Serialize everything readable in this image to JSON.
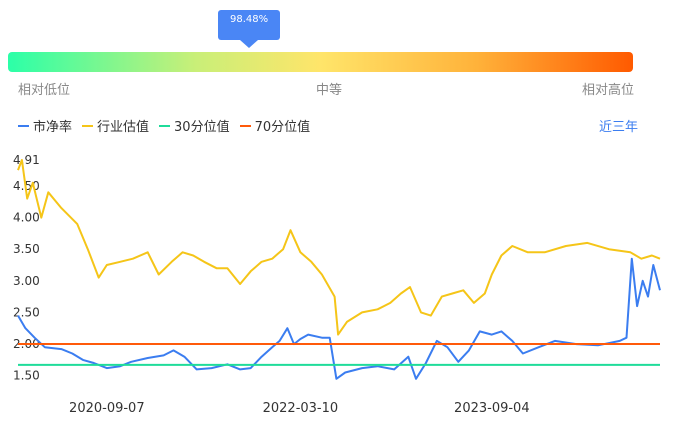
{
  "gauge": {
    "value_label": "98.48%",
    "percentile": 0.3857,
    "low_label": "相对低位",
    "mid_label": "中等",
    "high_label": "相对高位"
  },
  "legend": [
    {
      "label": "市净率",
      "color": "#3b7df0"
    },
    {
      "label": "行业估值",
      "color": "#f5c518"
    },
    {
      "label": "30分位值",
      "color": "#1fdc9a"
    },
    {
      "label": "70分位值",
      "color": "#ff5a0a"
    }
  ],
  "range_label": "近三年",
  "chart_data": {
    "type": "line",
    "title": "",
    "xlabel": "",
    "ylabel": "",
    "ylim": [
      1.4,
      4.91
    ],
    "yticks": [
      "4.91",
      "4.50",
      "4.00",
      "3.50",
      "3.00",
      "2.50",
      "2.00",
      "1.50"
    ],
    "xticks": [
      "2020-09-07",
      "2022-03-10",
      "2023-09-04"
    ],
    "x_range": [
      "2019-12-30",
      "2024-12-24"
    ],
    "series": [
      {
        "name": "市净率",
        "color": "#3b7df0",
        "points": [
          [
            "2019-12-30",
            2.45
          ],
          [
            "2020-01-20",
            2.25
          ],
          [
            "2020-02-15",
            2.1
          ],
          [
            "2020-03-15",
            1.95
          ],
          [
            "2020-05-01",
            1.92
          ],
          [
            "2020-06-01",
            1.85
          ],
          [
            "2020-07-01",
            1.75
          ],
          [
            "2020-08-01",
            1.7
          ],
          [
            "2020-09-07",
            1.62
          ],
          [
            "2020-10-15",
            1.65
          ],
          [
            "2020-11-15",
            1.72
          ],
          [
            "2021-01-01",
            1.78
          ],
          [
            "2021-02-15",
            1.82
          ],
          [
            "2021-03-15",
            1.9
          ],
          [
            "2021-04-15",
            1.8
          ],
          [
            "2021-05-20",
            1.6
          ],
          [
            "2021-07-01",
            1.62
          ],
          [
            "2021-08-15",
            1.68
          ],
          [
            "2021-09-20",
            1.6
          ],
          [
            "2021-10-20",
            1.62
          ],
          [
            "2021-11-20",
            1.8
          ],
          [
            "2021-12-20",
            1.95
          ],
          [
            "2022-01-10",
            2.05
          ],
          [
            "2022-02-01",
            2.25
          ],
          [
            "2022-02-20",
            2.0
          ],
          [
            "2022-03-10",
            2.08
          ],
          [
            "2022-04-01",
            2.15
          ],
          [
            "2022-05-10",
            2.1
          ],
          [
            "2022-06-01",
            2.1
          ],
          [
            "2022-06-20",
            1.45
          ],
          [
            "2022-07-15",
            1.55
          ],
          [
            "2022-09-01",
            1.62
          ],
          [
            "2022-10-15",
            1.65
          ],
          [
            "2022-12-01",
            1.6
          ],
          [
            "2023-01-10",
            1.8
          ],
          [
            "2023-02-01",
            1.45
          ],
          [
            "2023-03-01",
            1.7
          ],
          [
            "2023-04-01",
            2.05
          ],
          [
            "2023-05-01",
            1.95
          ],
          [
            "2023-06-01",
            1.72
          ],
          [
            "2023-07-01",
            1.9
          ],
          [
            "2023-08-01",
            2.2
          ],
          [
            "2023-09-04",
            2.15
          ],
          [
            "2023-10-01",
            2.2
          ],
          [
            "2023-11-01",
            2.05
          ],
          [
            "2023-12-01",
            1.85
          ],
          [
            "2024-01-15",
            1.95
          ],
          [
            "2024-03-01",
            2.05
          ],
          [
            "2024-05-01",
            2.0
          ],
          [
            "2024-07-01",
            1.98
          ],
          [
            "2024-09-01",
            2.05
          ],
          [
            "2024-09-20",
            2.1
          ],
          [
            "2024-10-05",
            3.35
          ],
          [
            "2024-10-20",
            2.6
          ],
          [
            "2024-11-05",
            3.0
          ],
          [
            "2024-11-20",
            2.75
          ],
          [
            "2024-12-05",
            3.25
          ],
          [
            "2024-12-24",
            2.85
          ]
        ]
      },
      {
        "name": "行业估值",
        "color": "#f5c518",
        "points": [
          [
            "2019-12-30",
            4.75
          ],
          [
            "2020-01-10",
            4.91
          ],
          [
            "2020-01-25",
            4.3
          ],
          [
            "2020-02-10",
            4.55
          ],
          [
            "2020-03-05",
            4.0
          ],
          [
            "2020-03-25",
            4.4
          ],
          [
            "2020-05-01",
            4.15
          ],
          [
            "2020-06-15",
            3.9
          ],
          [
            "2020-07-15",
            3.5
          ],
          [
            "2020-08-15",
            3.05
          ],
          [
            "2020-09-07",
            3.25
          ],
          [
            "2020-10-15",
            3.3
          ],
          [
            "2020-11-20",
            3.35
          ],
          [
            "2021-01-01",
            3.45
          ],
          [
            "2021-02-01",
            3.1
          ],
          [
            "2021-03-10",
            3.3
          ],
          [
            "2021-04-10",
            3.45
          ],
          [
            "2021-05-10",
            3.4
          ],
          [
            "2021-06-10",
            3.3
          ],
          [
            "2021-07-15",
            3.2
          ],
          [
            "2021-08-15",
            3.2
          ],
          [
            "2021-09-20",
            2.95
          ],
          [
            "2021-10-20",
            3.15
          ],
          [
            "2021-11-20",
            3.3
          ],
          [
            "2021-12-20",
            3.35
          ],
          [
            "2022-01-20",
            3.5
          ],
          [
            "2022-02-10",
            3.8
          ],
          [
            "2022-03-10",
            3.45
          ],
          [
            "2022-04-10",
            3.3
          ],
          [
            "2022-05-10",
            3.1
          ],
          [
            "2022-06-15",
            2.75
          ],
          [
            "2022-06-25",
            2.15
          ],
          [
            "2022-07-20",
            2.35
          ],
          [
            "2022-09-01",
            2.5
          ],
          [
            "2022-10-15",
            2.55
          ],
          [
            "2022-11-20",
            2.65
          ],
          [
            "2022-12-20",
            2.8
          ],
          [
            "2023-01-15",
            2.9
          ],
          [
            "2023-02-15",
            2.5
          ],
          [
            "2023-03-15",
            2.45
          ],
          [
            "2023-04-15",
            2.75
          ],
          [
            "2023-05-15",
            2.8
          ],
          [
            "2023-06-15",
            2.85
          ],
          [
            "2023-07-15",
            2.65
          ],
          [
            "2023-08-15",
            2.8
          ],
          [
            "2023-09-04",
            3.1
          ],
          [
            "2023-10-01",
            3.4
          ],
          [
            "2023-11-01",
            3.55
          ],
          [
            "2023-12-15",
            3.45
          ],
          [
            "2024-02-01",
            3.45
          ],
          [
            "2024-04-01",
            3.55
          ],
          [
            "2024-06-01",
            3.6
          ],
          [
            "2024-08-01",
            3.5
          ],
          [
            "2024-10-01",
            3.45
          ],
          [
            "2024-11-01",
            3.35
          ],
          [
            "2024-12-01",
            3.4
          ],
          [
            "2024-12-24",
            3.35
          ]
        ]
      },
      {
        "name": "30分位值",
        "color": "#1fdc9a",
        "constant": 1.67
      },
      {
        "name": "70分位值",
        "color": "#ff5a0a",
        "constant": 2.0
      }
    ]
  }
}
